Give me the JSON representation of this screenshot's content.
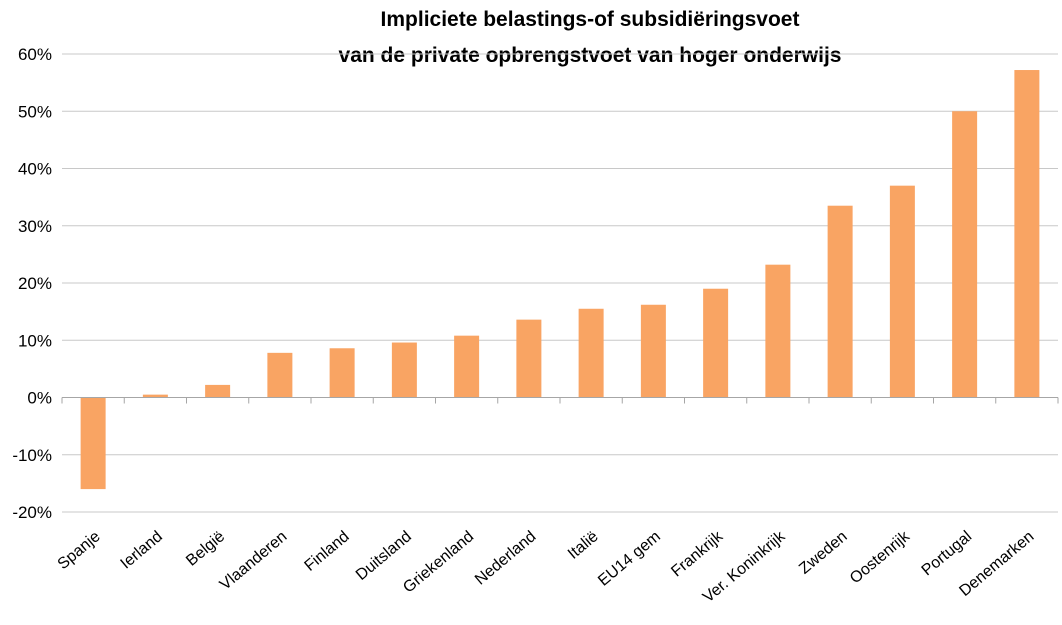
{
  "chart_data": {
    "type": "bar",
    "title": [
      "Impliciete belastings-of subsidiëringsvoet",
      "van de private opbrengstvoet van hoger onderwijs"
    ],
    "xlabel": "",
    "ylabel": "",
    "categories": [
      "Spanje",
      "Ierland",
      "België",
      "Vlaanderen",
      "Finland",
      "Duitsland",
      "Griekenland",
      "Nederland",
      "Italië",
      "EU14 gem",
      "Frankrijk",
      "Ver. Koninkrijk",
      "Zweden",
      "Oostenrijk",
      "Portugal",
      "Denemarken"
    ],
    "values": [
      -16,
      0.5,
      2.2,
      7.8,
      8.6,
      9.6,
      10.8,
      13.6,
      15.5,
      16.2,
      19.0,
      23.2,
      33.5,
      37.0,
      50.0,
      57.2
    ],
    "unit": "%",
    "ylim": [
      -20,
      60
    ],
    "yticks": [
      -20,
      -10,
      0,
      10,
      20,
      30,
      40,
      50,
      60
    ],
    "ytick_labels": [
      "-20%",
      "-10%",
      "0%",
      "10%",
      "20%",
      "30%",
      "40%",
      "50%",
      "60%"
    ],
    "grid": true,
    "legend": "none",
    "bar_color": "#F9A463"
  }
}
